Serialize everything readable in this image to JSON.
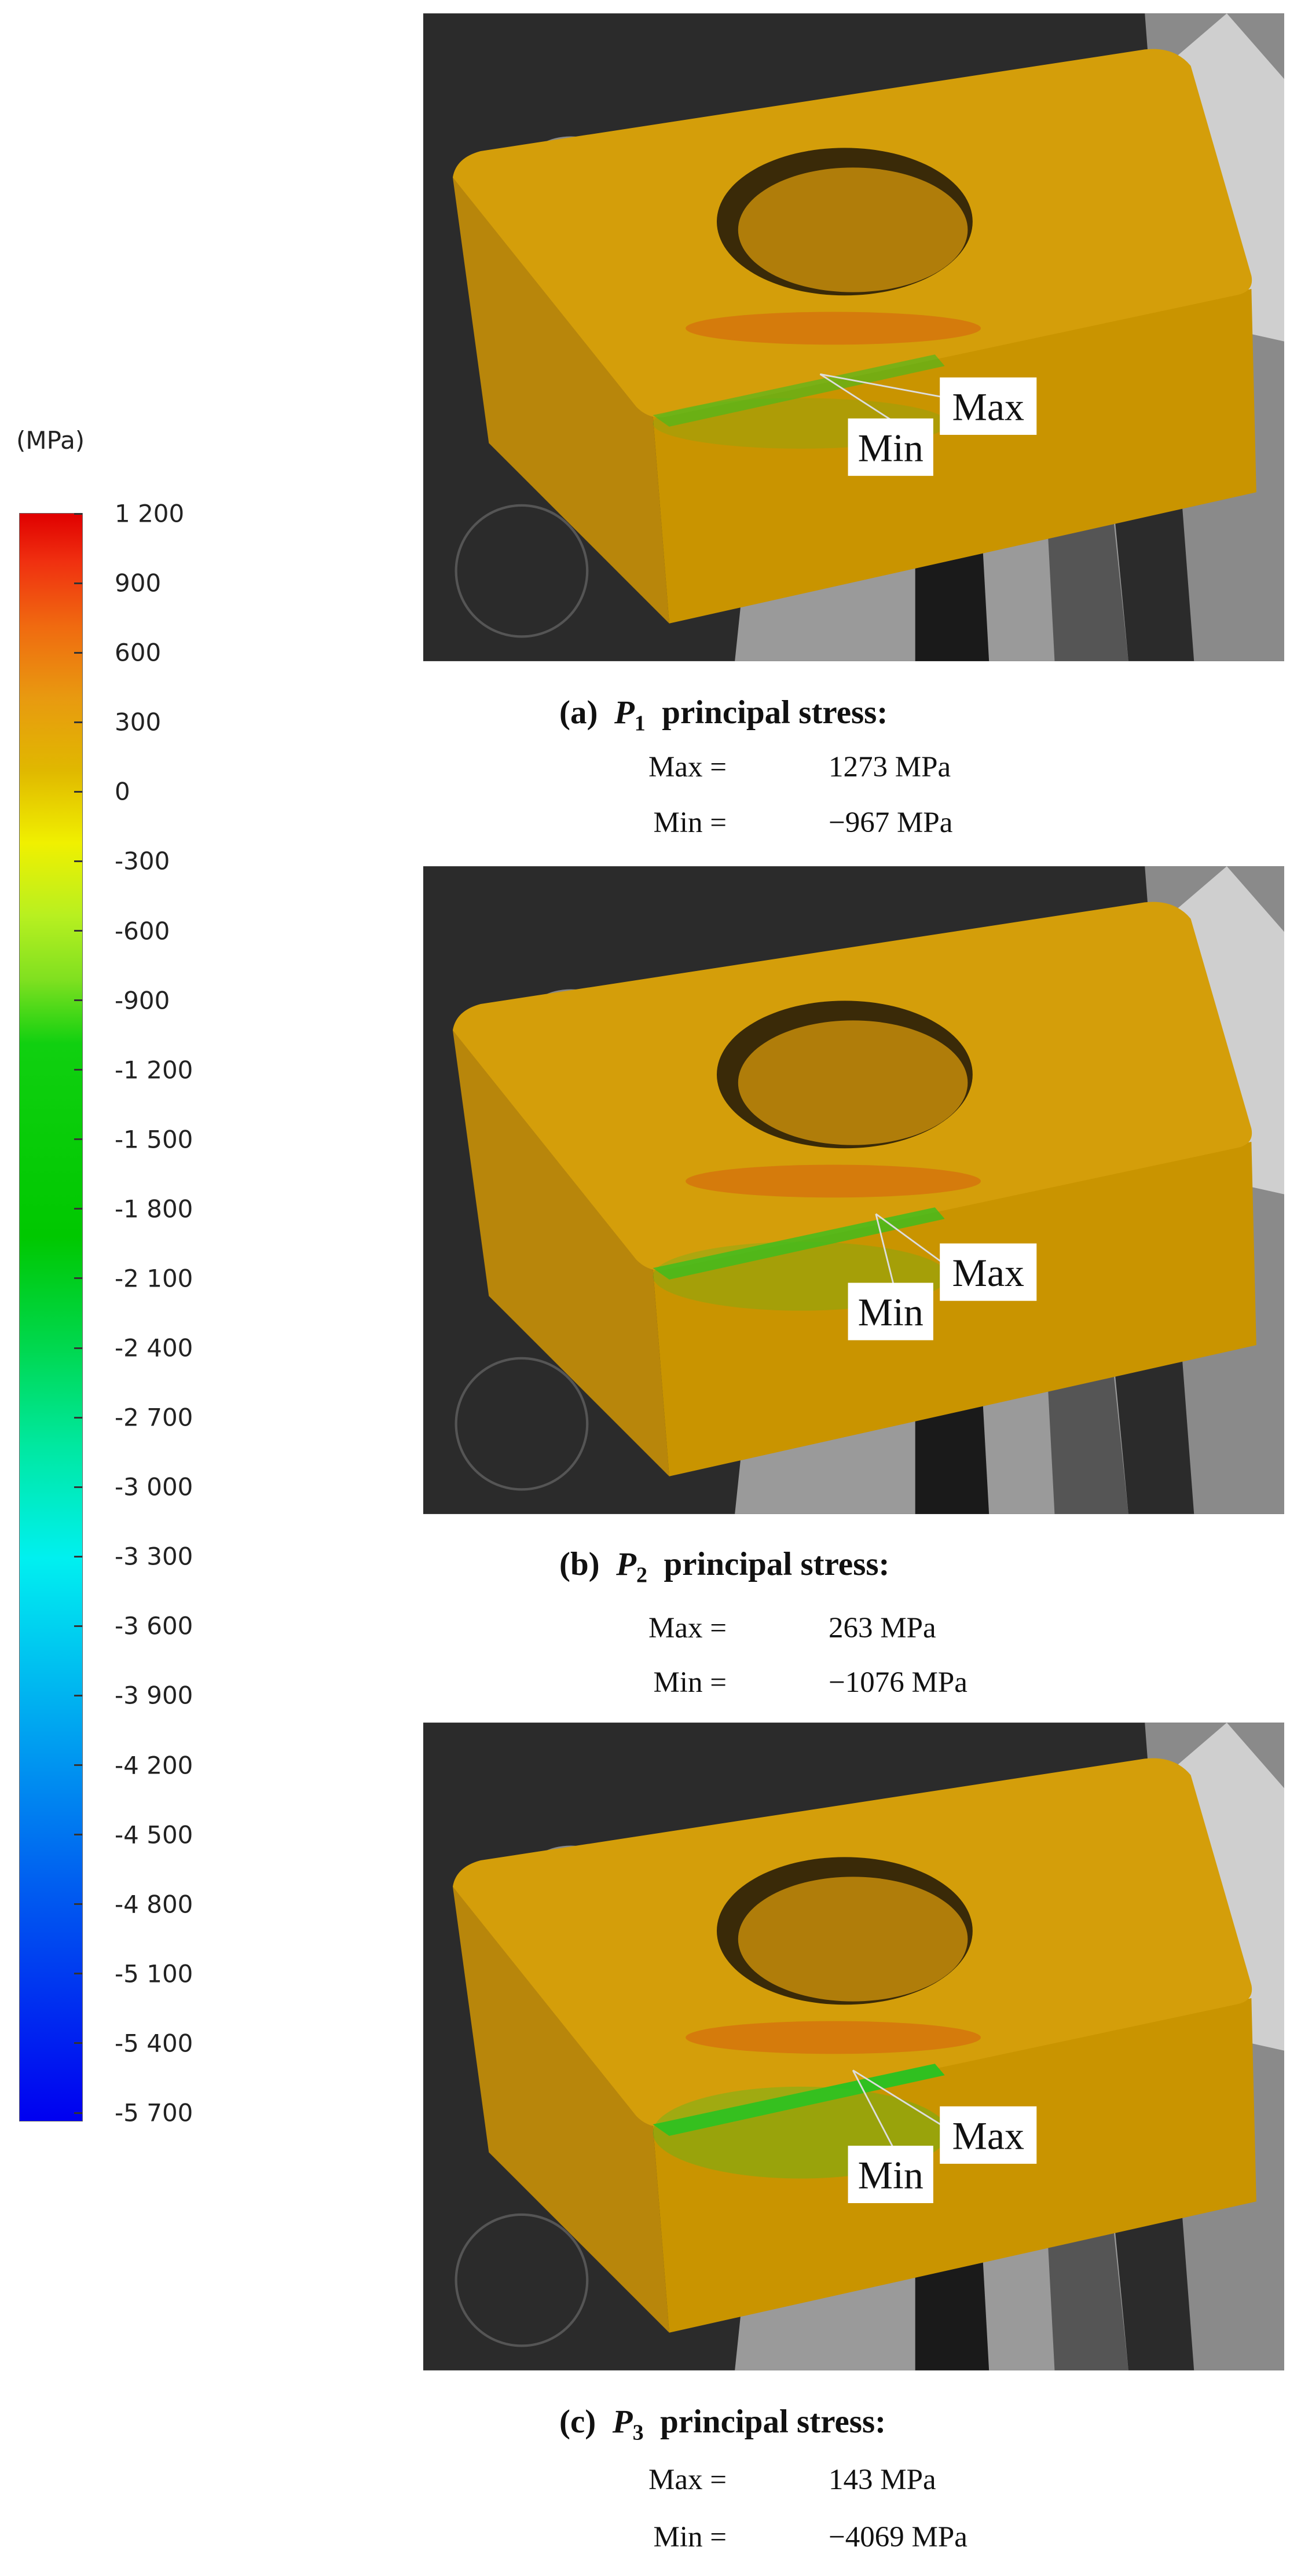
{
  "colorbar": {
    "unit": "(MPa)",
    "ylim": [
      -5700,
      1200
    ],
    "ticks": [
      {
        "value": 1200,
        "label": "1 200"
      },
      900,
      600,
      300,
      0,
      -300,
      -600,
      -900,
      {
        "value": -1200,
        "label": "-1 200"
      },
      {
        "value": -1500,
        "label": "-1 500"
      },
      {
        "value": -1800,
        "label": "-1 800"
      },
      {
        "value": -2100,
        "label": "-2 100"
      },
      {
        "value": -2400,
        "label": "-2 400"
      },
      {
        "value": -2700,
        "label": "-2 700"
      },
      {
        "value": -3000,
        "label": "-3 000"
      },
      {
        "value": -3300,
        "label": "-3 300"
      },
      {
        "value": -3600,
        "label": "-3 600"
      },
      {
        "value": -3900,
        "label": "-3 900"
      },
      {
        "value": -4200,
        "label": "-4 200"
      },
      {
        "value": -4500,
        "label": "-4 500"
      },
      {
        "value": -4800,
        "label": "-4 800"
      },
      {
        "value": -5100,
        "label": "-5 100"
      },
      {
        "value": -5400,
        "label": "-5 400"
      },
      {
        "value": -5700,
        "label": "-5 700"
      }
    ]
  },
  "panels": [
    {
      "label": "(a)",
      "symbol": "P",
      "subscript": "1",
      "title": "principal stress:",
      "max_label": "Max =",
      "max_value": "1273 MPa",
      "min_label": "Min =",
      "min_value": "−967 MPa",
      "marker_max": "Max",
      "marker_min": "Min"
    },
    {
      "label": "(b)",
      "symbol": "P",
      "subscript": "2",
      "title": "principal stress:",
      "max_label": "Max =",
      "max_value": "263 MPa",
      "min_label": "Min =",
      "min_value": "−1076 MPa",
      "marker_max": "Max",
      "marker_min": "Min"
    },
    {
      "label": "(c)",
      "symbol": "P",
      "subscript": "3",
      "title": "principal stress:",
      "max_label": "Max =",
      "max_value": "143 MPa",
      "min_label": "Min =",
      "min_value": "−4069 MPa",
      "marker_max": "Max",
      "marker_min": "Min"
    }
  ]
}
